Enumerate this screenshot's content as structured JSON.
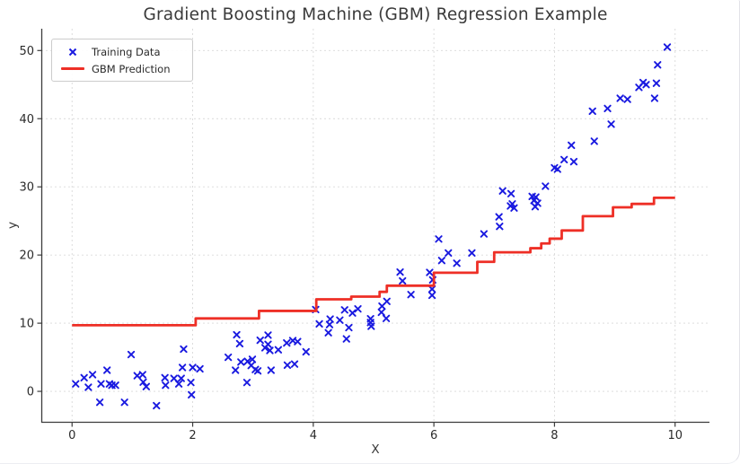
{
  "figure": {
    "title": "Gradient Boosting Machine (GBM) Regression Example",
    "xlabel": "X",
    "ylabel": "y"
  },
  "legend": {
    "items": [
      {
        "label": "Training Data",
        "marker": "x-marker",
        "color": "#1a1ae0"
      },
      {
        "label": "GBM Prediction",
        "marker": "line-marker",
        "color": "#ee2f26"
      }
    ]
  },
  "chart_data": {
    "type": "scatter",
    "title": "Gradient Boosting Machine (GBM) Regression Example",
    "xlabel": "X",
    "ylabel": "y",
    "xlim": [
      -0.51,
      10.57
    ],
    "ylim": [
      -4.6,
      53.2
    ],
    "xticks": [
      0,
      2,
      4,
      6,
      8,
      10
    ],
    "yticks": [
      0,
      10,
      20,
      30,
      40,
      50
    ],
    "grid": true,
    "grid_style": "dashed",
    "legend_position": "upper left",
    "series": [
      {
        "name": "Training Data",
        "type": "scatter",
        "marker": "x",
        "color": "#1a1ae0",
        "points": [
          [
            0.06,
            1.1
          ],
          [
            0.2,
            2.0
          ],
          [
            0.27,
            0.6
          ],
          [
            0.34,
            2.45
          ],
          [
            0.46,
            -1.6
          ],
          [
            0.48,
            1.1
          ],
          [
            0.58,
            3.1
          ],
          [
            0.62,
            1.1
          ],
          [
            0.66,
            0.9
          ],
          [
            0.72,
            0.9
          ],
          [
            0.87,
            -1.6
          ],
          [
            0.98,
            5.4
          ],
          [
            1.08,
            2.3
          ],
          [
            1.17,
            2.45
          ],
          [
            1.18,
            1.35
          ],
          [
            1.23,
            0.7
          ],
          [
            1.4,
            -2.1
          ],
          [
            1.54,
            2.0
          ],
          [
            1.55,
            0.9
          ],
          [
            1.69,
            1.9
          ],
          [
            1.77,
            1.1
          ],
          [
            1.81,
            1.9
          ],
          [
            1.83,
            3.5
          ],
          [
            1.85,
            6.2
          ],
          [
            1.97,
            1.3
          ],
          [
            1.98,
            -0.5
          ],
          [
            2.0,
            3.5
          ],
          [
            2.12,
            3.3
          ],
          [
            2.59,
            5.0
          ],
          [
            2.71,
            3.1
          ],
          [
            2.73,
            8.3
          ],
          [
            2.78,
            7.0
          ],
          [
            2.8,
            4.3
          ],
          [
            2.9,
            1.3
          ],
          [
            2.91,
            4.4
          ],
          [
            2.97,
            3.8
          ],
          [
            2.99,
            4.7
          ],
          [
            3.04,
            3.2
          ],
          [
            3.08,
            3.0
          ],
          [
            3.12,
            7.5
          ],
          [
            3.2,
            6.4
          ],
          [
            3.25,
            8.25
          ],
          [
            3.25,
            6.9
          ],
          [
            3.28,
            6.0
          ],
          [
            3.3,
            3.1
          ],
          [
            3.42,
            6.1
          ],
          [
            3.56,
            7.1
          ],
          [
            3.57,
            3.85
          ],
          [
            3.66,
            7.45
          ],
          [
            3.69,
            4.0
          ],
          [
            3.74,
            7.3
          ],
          [
            3.88,
            5.8
          ],
          [
            4.04,
            12.0
          ],
          [
            4.1,
            9.9
          ],
          [
            4.25,
            8.6
          ],
          [
            4.27,
            9.8
          ],
          [
            4.28,
            10.6
          ],
          [
            4.44,
            10.45
          ],
          [
            4.52,
            11.95
          ],
          [
            4.55,
            7.7
          ],
          [
            4.59,
            9.35
          ],
          [
            4.65,
            11.5
          ],
          [
            4.74,
            12.1
          ],
          [
            4.95,
            10.65
          ],
          [
            4.95,
            10.1
          ],
          [
            4.96,
            9.55
          ],
          [
            5.13,
            11.6
          ],
          [
            5.14,
            12.5
          ],
          [
            5.21,
            10.7
          ],
          [
            5.22,
            13.2
          ],
          [
            5.44,
            17.5
          ],
          [
            5.48,
            16.2
          ],
          [
            5.62,
            14.2
          ],
          [
            5.93,
            17.45
          ],
          [
            5.97,
            15.0
          ],
          [
            5.97,
            14.1
          ],
          [
            5.98,
            16.35
          ],
          [
            6.08,
            22.35
          ],
          [
            6.13,
            19.2
          ],
          [
            6.24,
            20.3
          ],
          [
            6.38,
            18.8
          ],
          [
            6.63,
            20.3
          ],
          [
            6.83,
            23.1
          ],
          [
            7.08,
            25.6
          ],
          [
            7.09,
            24.2
          ],
          [
            7.14,
            29.4
          ],
          [
            7.27,
            27.2
          ],
          [
            7.28,
            29.0
          ],
          [
            7.3,
            27.5
          ],
          [
            7.33,
            26.9
          ],
          [
            7.63,
            28.6
          ],
          [
            7.66,
            28.0
          ],
          [
            7.68,
            27.1
          ],
          [
            7.69,
            28.5
          ],
          [
            7.72,
            27.6
          ],
          [
            7.85,
            30.1
          ],
          [
            8.0,
            32.8
          ],
          [
            8.05,
            32.6
          ],
          [
            8.16,
            34.0
          ],
          [
            8.28,
            36.1
          ],
          [
            8.32,
            33.7
          ],
          [
            8.63,
            41.1
          ],
          [
            8.66,
            36.7
          ],
          [
            8.88,
            41.5
          ],
          [
            8.94,
            39.2
          ],
          [
            9.09,
            43.0
          ],
          [
            9.21,
            42.85
          ],
          [
            9.4,
            44.6
          ],
          [
            9.47,
            45.3
          ],
          [
            9.52,
            45.0
          ],
          [
            9.66,
            43.0
          ],
          [
            9.69,
            45.2
          ],
          [
            9.71,
            47.9
          ],
          [
            9.87,
            50.5
          ]
        ]
      },
      {
        "name": "GBM Prediction",
        "type": "step",
        "color": "#ee2f26",
        "segments": [
          [
            0.0,
            2.05,
            9.7
          ],
          [
            2.05,
            3.1,
            10.7
          ],
          [
            3.1,
            4.05,
            11.8
          ],
          [
            4.05,
            4.63,
            13.5
          ],
          [
            4.63,
            5.1,
            13.9
          ],
          [
            5.1,
            5.22,
            14.6
          ],
          [
            5.22,
            6.0,
            15.5
          ],
          [
            6.0,
            6.72,
            17.4
          ],
          [
            6.72,
            7.0,
            19.0
          ],
          [
            7.0,
            7.6,
            20.4
          ],
          [
            7.6,
            7.78,
            21.0
          ],
          [
            7.78,
            7.92,
            21.7
          ],
          [
            7.92,
            8.12,
            22.4
          ],
          [
            8.12,
            8.47,
            23.6
          ],
          [
            8.47,
            8.97,
            25.7
          ],
          [
            8.97,
            9.28,
            27.0
          ],
          [
            9.28,
            9.65,
            27.5
          ],
          [
            9.65,
            10.0,
            28.4
          ]
        ]
      }
    ]
  },
  "style": {
    "spine_color": "#3c3c3c",
    "grid_color": "#d9d9d9",
    "tick_label_color": "#2b2b2b"
  }
}
